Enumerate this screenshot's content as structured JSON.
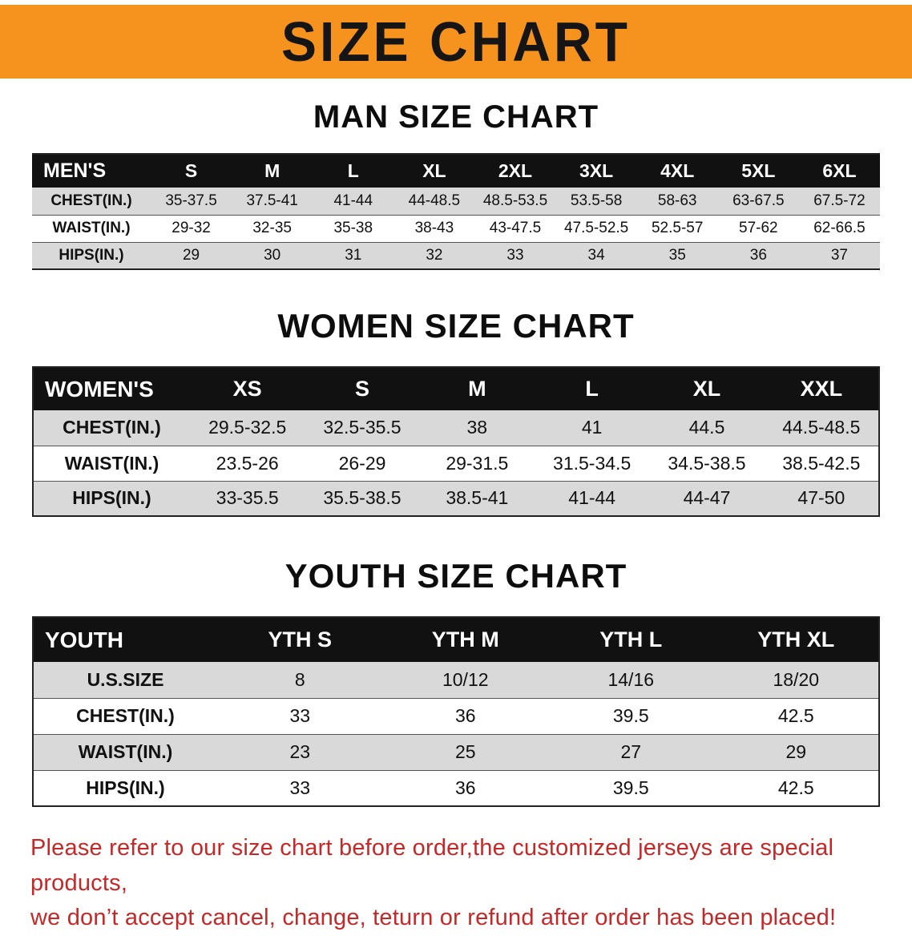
{
  "banner": {
    "title": "SIZE CHART",
    "bg_color": "#F6921E",
    "text_color": "#151515"
  },
  "men": {
    "title": "MAN SIZE CHART",
    "header": [
      "MEN'S",
      "S",
      "M",
      "L",
      "XL",
      "2XL",
      "3XL",
      "4XL",
      "5XL",
      "6XL"
    ],
    "rows": [
      {
        "label": "CHEST(IN.)",
        "values": [
          "35-37.5",
          "37.5-41",
          "41-44",
          "44-48.5",
          "48.5-53.5",
          "53.5-58",
          "58-63",
          "63-67.5",
          "67.5-72"
        ]
      },
      {
        "label": "WAIST(IN.)",
        "values": [
          "29-32",
          "32-35",
          "35-38",
          "38-43",
          "43-47.5",
          "47.5-52.5",
          "52.5-57",
          "57-62",
          "62-66.5"
        ]
      },
      {
        "label": "HIPS(IN.)",
        "values": [
          "29",
          "30",
          "31",
          "32",
          "33",
          "34",
          "35",
          "36",
          "37"
        ]
      }
    ]
  },
  "women": {
    "title": "WOMEN SIZE CHART",
    "header": [
      "WOMEN'S",
      "XS",
      "S",
      "M",
      "L",
      "XL",
      "XXL"
    ],
    "rows": [
      {
        "label": "CHEST(IN.)",
        "values": [
          "29.5-32.5",
          "32.5-35.5",
          "38",
          "41",
          "44.5",
          "44.5-48.5"
        ]
      },
      {
        "label": "WAIST(IN.)",
        "values": [
          "23.5-26",
          "26-29",
          "29-31.5",
          "31.5-34.5",
          "34.5-38.5",
          "38.5-42.5"
        ]
      },
      {
        "label": "HIPS(IN.)",
        "values": [
          "33-35.5",
          "35.5-38.5",
          "38.5-41",
          "41-44",
          "44-47",
          "47-50"
        ]
      }
    ]
  },
  "youth": {
    "title": "YOUTH SIZE CHART",
    "header": [
      "YOUTH",
      "YTH S",
      "YTH M",
      "YTH L",
      "YTH XL"
    ],
    "rows": [
      {
        "label": "U.S.SIZE",
        "values": [
          "8",
          "10/12",
          "14/16",
          "18/20"
        ]
      },
      {
        "label": "CHEST(IN.)",
        "values": [
          "33",
          "36",
          "39.5",
          "42.5"
        ]
      },
      {
        "label": "WAIST(IN.)",
        "values": [
          "23",
          "25",
          "27",
          "29"
        ]
      },
      {
        "label": "HIPS(IN.)",
        "values": [
          "33",
          "36",
          "39.5",
          "42.5"
        ]
      }
    ]
  },
  "disclaimer": {
    "line1": "Please refer to our size chart before order,the customized jerseys are special products,",
    "line2": "we don’t accept cancel, change, teturn or refund after order has been placed!",
    "color": "#C62828"
  }
}
